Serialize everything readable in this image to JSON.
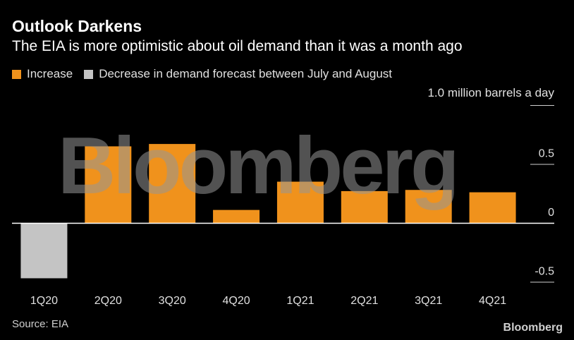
{
  "header": {
    "title": "Outlook Darkens",
    "subtitle": "The EIA is more optimistic about oil demand than it was a month ago"
  },
  "legend": [
    {
      "label": "Increase",
      "color": "#f0921c"
    },
    {
      "label": "Decrease in demand forecast between July and August",
      "color": "#c4c4c4"
    }
  ],
  "footer": {
    "source": "Source: EIA",
    "brand": "Bloomberg"
  },
  "watermark": "Bloomberg",
  "chart_data": {
    "type": "bar",
    "title": "Outlook Darkens",
    "subtitle": "The EIA is more optimistic about oil demand than it was a month ago",
    "ylabel": "1.0 million barrels a day",
    "unit_label": "1.0 million barrels a day",
    "categories": [
      "1Q20",
      "2Q20",
      "3Q20",
      "4Q20",
      "1Q21",
      "2Q21",
      "3Q21",
      "4Q21"
    ],
    "values": [
      -0.47,
      0.65,
      0.67,
      0.11,
      0.35,
      0.27,
      0.28,
      0.26
    ],
    "ylim": [
      -0.5,
      1.0
    ],
    "yticks": [
      {
        "value": 1.0,
        "label": ""
      },
      {
        "value": 0.5,
        "label": "0.5"
      },
      {
        "value": 0,
        "label": "0"
      },
      {
        "value": -0.5,
        "label": "-0.5"
      }
    ],
    "positive_color": "#f0921c",
    "negative_color": "#c4c4c4",
    "grid": false,
    "legend_position": "top-left"
  }
}
